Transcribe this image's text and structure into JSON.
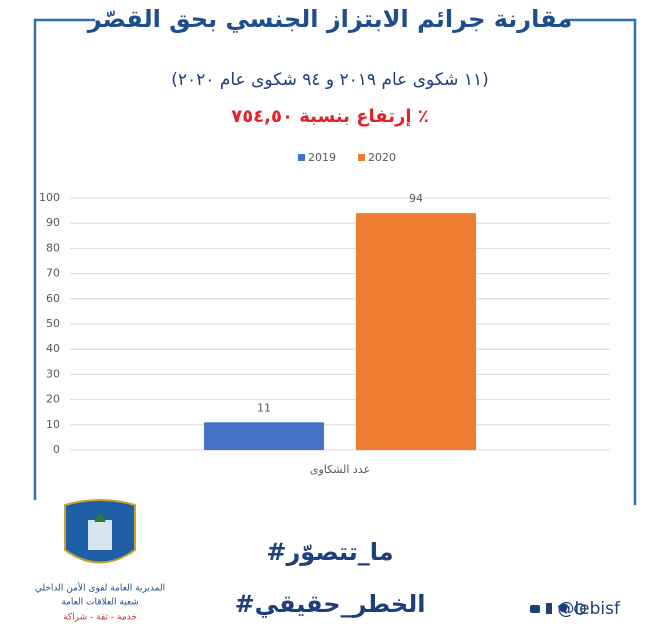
{
  "header": {
    "title": "مقارنة جرائم الابتزاز الجنسي بحق القصّر",
    "subtitle": "(١١ شكوى عام ٢٠١٩ و ٩٤ شكوى عام ٢٠٢٠)",
    "highlight": "إرتفاع بنسبة ٧٥٤,٥٠ ٪"
  },
  "chart_data": {
    "type": "bar",
    "categories": [
      "عدد الشكاوى"
    ],
    "series": [
      {
        "name": "2019",
        "color": "#4472c4",
        "values": [
          11
        ]
      },
      {
        "name": "2020",
        "color": "#ed7d31",
        "values": [
          94
        ]
      }
    ],
    "ylim": [
      0,
      100
    ],
    "yticks": [
      0,
      10,
      20,
      30,
      40,
      50,
      60,
      70,
      80,
      90,
      100
    ],
    "grid": true
  },
  "hashtags": [
    "#ما_تتصوّر",
    "#الخطر_حقيقي"
  ],
  "footer": {
    "logo_lines": [
      "المديرية العامة لقوى الأمن الداخلي",
      "شعبة العلاقات العامة",
      "خدمة - ثقة - شراكة"
    ],
    "handle": "@lebisf"
  }
}
